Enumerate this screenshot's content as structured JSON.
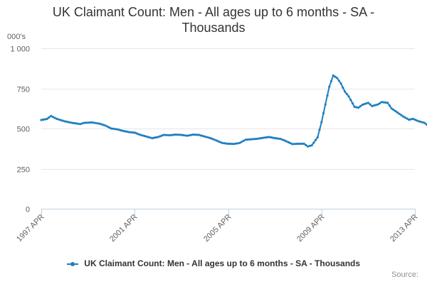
{
  "chart": {
    "title_line1": "UK Claimant Count: Men - All ages up to 6 months - SA -",
    "title_line2": "Thousands",
    "unit_label": "000's",
    "legend_label": "UK Claimant Count: Men - All ages up to 6 months - SA - Thousands",
    "source_label": "Source:",
    "series_color": "#1f7fc0"
  },
  "chart_data": {
    "type": "line",
    "title": "UK Claimant Count: Men - All ages up to 6 months - SA - Thousands",
    "ylabel": "000's",
    "xlabel": "",
    "ylim": [
      0,
      1000
    ],
    "yticks": [
      0,
      250,
      500,
      750,
      1000
    ],
    "ytick_labels": [
      "0",
      "250",
      "500",
      "750",
      "1 000"
    ],
    "xtick_labels": [
      "1997 APR",
      "2001 APR",
      "2005 APR",
      "2009 APR",
      "2013 APR"
    ],
    "xtick_dates": [
      "1997-04",
      "2001-04",
      "2005-04",
      "2009-04",
      "2013-04"
    ],
    "grid": true,
    "legend_position": "bottom",
    "series": [
      {
        "name": "UK Claimant Count: Men - All ages up to 6 months - SA - Thousands",
        "points": [
          [
            "1997-04",
            553
          ],
          [
            "1997-07",
            560
          ],
          [
            "1997-09",
            578
          ],
          [
            "1997-12",
            560
          ],
          [
            "1998-04",
            545
          ],
          [
            "1998-08",
            535
          ],
          [
            "1998-12",
            528
          ],
          [
            "1999-02",
            535
          ],
          [
            "1999-06",
            538
          ],
          [
            "1999-10",
            530
          ],
          [
            "2000-01",
            518
          ],
          [
            "2000-04",
            500
          ],
          [
            "2000-07",
            495
          ],
          [
            "2000-10",
            485
          ],
          [
            "2001-01",
            478
          ],
          [
            "2001-04",
            474
          ],
          [
            "2001-07",
            460
          ],
          [
            "2001-10",
            450
          ],
          [
            "2002-01",
            440
          ],
          [
            "2002-04",
            447
          ],
          [
            "2002-07",
            460
          ],
          [
            "2002-10",
            458
          ],
          [
            "2003-01",
            462
          ],
          [
            "2003-04",
            460
          ],
          [
            "2003-07",
            455
          ],
          [
            "2003-10",
            462
          ],
          [
            "2004-01",
            460
          ],
          [
            "2004-04",
            450
          ],
          [
            "2004-07",
            440
          ],
          [
            "2004-10",
            425
          ],
          [
            "2005-01",
            410
          ],
          [
            "2005-04",
            405
          ],
          [
            "2005-07",
            404
          ],
          [
            "2005-10",
            410
          ],
          [
            "2006-01",
            430
          ],
          [
            "2006-04",
            433
          ],
          [
            "2006-07",
            436
          ],
          [
            "2006-10",
            442
          ],
          [
            "2007-01",
            447
          ],
          [
            "2007-04",
            440
          ],
          [
            "2007-07",
            435
          ],
          [
            "2007-10",
            420
          ],
          [
            "2008-01",
            403
          ],
          [
            "2008-04",
            405
          ],
          [
            "2008-07",
            405
          ],
          [
            "2008-09",
            388
          ],
          [
            "2008-11",
            395
          ],
          [
            "2009-02",
            445
          ],
          [
            "2009-04",
            540
          ],
          [
            "2009-06",
            650
          ],
          [
            "2009-08",
            760
          ],
          [
            "2009-10",
            830
          ],
          [
            "2009-12",
            815
          ],
          [
            "2010-02",
            780
          ],
          [
            "2010-04",
            730
          ],
          [
            "2010-06",
            700
          ],
          [
            "2010-09",
            635
          ],
          [
            "2010-11",
            630
          ],
          [
            "2011-01",
            648
          ],
          [
            "2011-04",
            660
          ],
          [
            "2011-06",
            640
          ],
          [
            "2011-09",
            650
          ],
          [
            "2011-11",
            665
          ],
          [
            "2012-02",
            660
          ],
          [
            "2012-04",
            625
          ],
          [
            "2012-07",
            600
          ],
          [
            "2012-10",
            575
          ],
          [
            "2013-01",
            555
          ],
          [
            "2013-03",
            560
          ],
          [
            "2013-06",
            545
          ],
          [
            "2013-09",
            535
          ],
          [
            "2013-11",
            515
          ]
        ]
      }
    ]
  }
}
